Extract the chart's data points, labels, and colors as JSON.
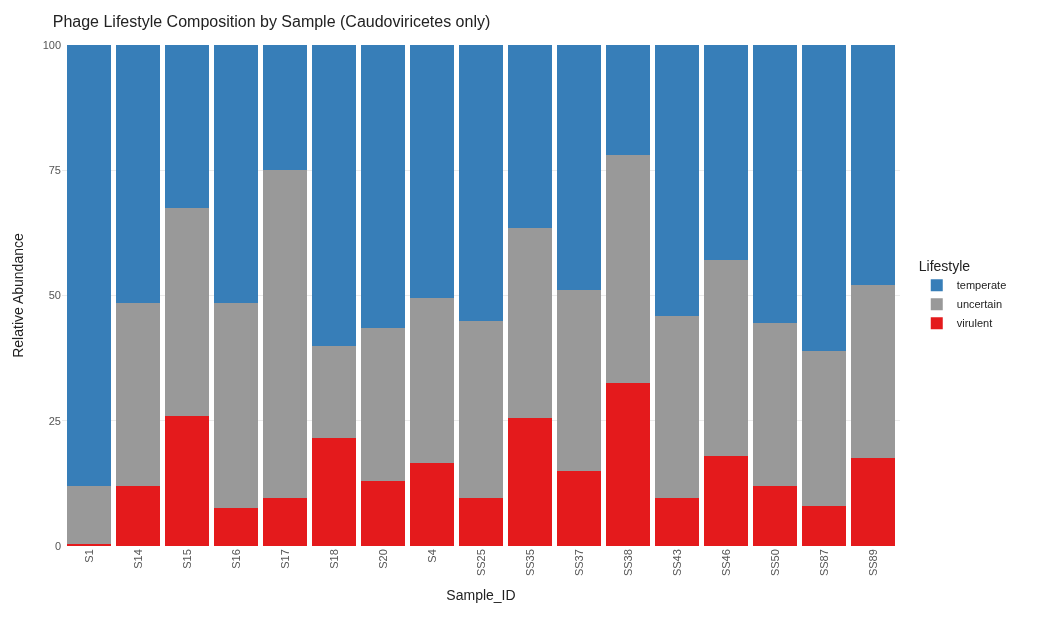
{
  "chart_data": {
    "type": "bar",
    "title": "Phage Lifestyle Composition by Sample (Caudoviricetes only)",
    "xlabel": "Sample_ID",
    "ylabel": "Relative Abundance",
    "legend_title": "Lifestyle",
    "categories": [
      "S1",
      "S14",
      "S15",
      "S16",
      "S17",
      "S18",
      "S20",
      "S4",
      "SS25",
      "SS35",
      "SS37",
      "SS38",
      "SS43",
      "SS46",
      "SS50",
      "SS87",
      "SS89"
    ],
    "stacked": true,
    "ylim": [
      0,
      100
    ],
    "yticks": [
      0,
      25,
      50,
      75,
      100
    ],
    "grid": true,
    "legend": "right",
    "series": [
      {
        "name": "virulent",
        "color": "#e41a1c",
        "values": [
          0.5,
          12,
          26,
          7.5,
          9.5,
          21.5,
          13,
          16.5,
          9.5,
          25.5,
          15,
          32.5,
          9.5,
          18,
          12,
          8,
          17.5
        ]
      },
      {
        "name": "uncertain",
        "color": "#999999",
        "values": [
          11.5,
          36.5,
          41.5,
          41,
          65.5,
          18.5,
          30.5,
          33,
          35.5,
          38,
          36,
          45.5,
          36.5,
          39,
          32.5,
          31,
          34.5
        ]
      },
      {
        "name": "temperate",
        "color": "#377eb8",
        "values": [
          88,
          51.5,
          32.5,
          51.5,
          25,
          60,
          56.5,
          50.5,
          55,
          36.5,
          49,
          22,
          54,
          43,
          55.5,
          61,
          48
        ]
      }
    ]
  }
}
